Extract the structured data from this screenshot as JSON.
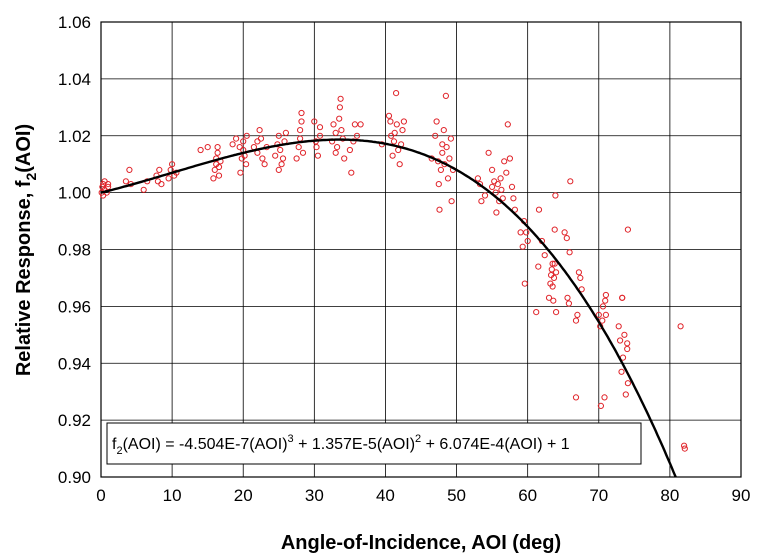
{
  "chart_data": {
    "type": "scatter",
    "xlabel": "Angle-of-Incidence, AOI (deg)",
    "ylabel": "Relative Response, f2(AOI)",
    "ylabel_parts": {
      "main": "Relative Response, f",
      "sub": "2",
      "tail": "(AOI)"
    },
    "xlim": [
      0,
      90
    ],
    "ylim": [
      0.9,
      1.06
    ],
    "x_ticks": [
      0,
      10,
      20,
      30,
      40,
      50,
      60,
      70,
      80,
      90
    ],
    "y_ticks": [
      0.9,
      0.92,
      0.94,
      0.96,
      0.98,
      1.0,
      1.02,
      1.04,
      1.06
    ],
    "y_tick_labels": [
      "0.90",
      "0.92",
      "0.94",
      "0.96",
      "0.98",
      "1.00",
      "1.02",
      "1.04",
      "1.06"
    ],
    "x_tick_labels": [
      "0",
      "10",
      "20",
      "30",
      "40",
      "50",
      "60",
      "70",
      "80",
      "90"
    ],
    "grid": true,
    "marker_color": "#e0242a",
    "curve_color": "#000000",
    "equation": "f2(AOI) = -4.504E-7(AOI)3 + 1.357E-5(AOI)2 + 6.074E-4(AOI) + 1",
    "equation_parts": {
      "a": "f",
      "a_sub": "2",
      "b": "(AOI) = -4.504E-7(AOI)",
      "b_sup": "3",
      "c": " + 1.357E-5(AOI)",
      "c_sup": "2",
      "d": " + 6.074E-4(AOI) + 1"
    },
    "fit_coefficients": {
      "a3": -4.504e-07,
      "a2": 1.357e-05,
      "a1": 0.0006074,
      "a0": 1
    },
    "points": [
      [
        0.1,
        1.0
      ],
      [
        0.2,
        1.002
      ],
      [
        0.3,
        1.003
      ],
      [
        0.3,
        0.999
      ],
      [
        0.5,
        1.001
      ],
      [
        0.5,
        1.004
      ],
      [
        0.8,
        1.0
      ],
      [
        1.0,
        1.002
      ],
      [
        1.0,
        1.003
      ],
      [
        3.5,
        1.004
      ],
      [
        4.0,
        1.008
      ],
      [
        4.2,
        1.003
      ],
      [
        6.0,
        1.001
      ],
      [
        6.5,
        1.004
      ],
      [
        7.8,
        1.006
      ],
      [
        8.0,
        1.004
      ],
      [
        8.2,
        1.008
      ],
      [
        8.5,
        1.003
      ],
      [
        9.5,
        1.005
      ],
      [
        9.8,
        1.008
      ],
      [
        10.0,
        1.01
      ],
      [
        10.3,
        1.006
      ],
      [
        10.6,
        1.007
      ],
      [
        14.0,
        1.015
      ],
      [
        15.0,
        1.016
      ],
      [
        15.8,
        1.005
      ],
      [
        16.0,
        1.008
      ],
      [
        16.2,
        1.01
      ],
      [
        16.2,
        1.012
      ],
      [
        16.4,
        1.014
      ],
      [
        16.4,
        1.016
      ],
      [
        16.6,
        1.009
      ],
      [
        16.6,
        1.006
      ],
      [
        16.8,
        1.011
      ],
      [
        18.5,
        1.017
      ],
      [
        19.0,
        1.019
      ],
      [
        19.5,
        1.016
      ],
      [
        19.6,
        1.007
      ],
      [
        19.8,
        1.012
      ],
      [
        20.0,
        1.015
      ],
      [
        20.0,
        1.018
      ],
      [
        20.2,
        1.013
      ],
      [
        20.4,
        1.01
      ],
      [
        20.5,
        1.02
      ],
      [
        21.5,
        1.016
      ],
      [
        22.0,
        1.018
      ],
      [
        22.0,
        1.014
      ],
      [
        22.3,
        1.022
      ],
      [
        22.5,
        1.019
      ],
      [
        22.7,
        1.012
      ],
      [
        23.0,
        1.01
      ],
      [
        23.3,
        1.016
      ],
      [
        24.5,
        1.013
      ],
      [
        24.8,
        1.017
      ],
      [
        25.0,
        1.02
      ],
      [
        25.0,
        1.008
      ],
      [
        25.2,
        1.015
      ],
      [
        25.4,
        1.01
      ],
      [
        25.6,
        1.012
      ],
      [
        25.8,
        1.018
      ],
      [
        26.0,
        1.021
      ],
      [
        27.5,
        1.012
      ],
      [
        27.8,
        1.016
      ],
      [
        28.0,
        1.019
      ],
      [
        28.0,
        1.022
      ],
      [
        28.2,
        1.025
      ],
      [
        28.2,
        1.028
      ],
      [
        28.4,
        1.014
      ],
      [
        30.0,
        1.025
      ],
      [
        30.2,
        1.018
      ],
      [
        30.3,
        1.016
      ],
      [
        30.5,
        1.013
      ],
      [
        30.8,
        1.02
      ],
      [
        30.8,
        1.023
      ],
      [
        32.5,
        1.018
      ],
      [
        32.7,
        1.024
      ],
      [
        33.0,
        1.021
      ],
      [
        33.0,
        1.014
      ],
      [
        33.2,
        1.016
      ],
      [
        33.5,
        1.026
      ],
      [
        33.6,
        1.03
      ],
      [
        33.7,
        1.033
      ],
      [
        33.8,
        1.022
      ],
      [
        34.0,
        1.019
      ],
      [
        34.2,
        1.012
      ],
      [
        35.0,
        1.015
      ],
      [
        35.2,
        1.007
      ],
      [
        35.5,
        1.018
      ],
      [
        35.7,
        1.024
      ],
      [
        36.0,
        1.02
      ],
      [
        36.5,
        1.024
      ],
      [
        39.5,
        1.017
      ],
      [
        40.5,
        1.027
      ],
      [
        40.7,
        1.025
      ],
      [
        40.8,
        1.02
      ],
      [
        41.0,
        1.013
      ],
      [
        41.2,
        1.018
      ],
      [
        41.3,
        1.021
      ],
      [
        41.5,
        1.035
      ],
      [
        41.6,
        1.024
      ],
      [
        41.8,
        1.015
      ],
      [
        42.0,
        1.01
      ],
      [
        42.2,
        1.017
      ],
      [
        42.4,
        1.022
      ],
      [
        42.6,
        1.025
      ],
      [
        46.5,
        1.012
      ],
      [
        47.0,
        1.02
      ],
      [
        47.2,
        1.025
      ],
      [
        47.4,
        1.011
      ],
      [
        47.5,
        1.003
      ],
      [
        47.6,
        0.994
      ],
      [
        47.8,
        1.008
      ],
      [
        48.0,
        1.017
      ],
      [
        48.0,
        1.014
      ],
      [
        48.2,
        1.022
      ],
      [
        48.3,
        1.01
      ],
      [
        48.5,
        1.034
      ],
      [
        48.6,
        1.016
      ],
      [
        48.8,
        1.005
      ],
      [
        49.0,
        1.012
      ],
      [
        49.2,
        1.019
      ],
      [
        49.3,
        0.997
      ],
      [
        49.5,
        1.008
      ],
      [
        53.0,
        1.005
      ],
      [
        53.3,
        1.003
      ],
      [
        53.5,
        0.997
      ],
      [
        54.0,
        0.999
      ],
      [
        54.5,
        1.014
      ],
      [
        55.0,
        1.008
      ],
      [
        55.0,
        1.002
      ],
      [
        55.3,
        1.004
      ],
      [
        55.5,
        1.0
      ],
      [
        55.6,
        0.993
      ],
      [
        55.8,
        1.003
      ],
      [
        56.0,
        0.997
      ],
      [
        56.2,
        1.005
      ],
      [
        56.3,
        1.001
      ],
      [
        56.5,
        0.998
      ],
      [
        56.7,
        1.011
      ],
      [
        57.0,
        1.007
      ],
      [
        57.2,
        1.024
      ],
      [
        57.5,
        1.012
      ],
      [
        57.8,
        1.002
      ],
      [
        58.0,
        0.998
      ],
      [
        58.2,
        0.994
      ],
      [
        59.0,
        0.986
      ],
      [
        59.3,
        0.981
      ],
      [
        59.5,
        0.99
      ],
      [
        59.6,
        0.968
      ],
      [
        59.8,
        0.986
      ],
      [
        60.0,
        0.983
      ],
      [
        61.2,
        0.958
      ],
      [
        61.5,
        0.974
      ],
      [
        61.6,
        0.994
      ],
      [
        62.0,
        0.983
      ],
      [
        62.4,
        0.978
      ],
      [
        63.0,
        0.963
      ],
      [
        63.2,
        0.968
      ],
      [
        63.3,
        0.971
      ],
      [
        63.4,
        0.973
      ],
      [
        63.5,
        0.975
      ],
      [
        63.5,
        0.967
      ],
      [
        63.6,
        0.962
      ],
      [
        63.7,
        0.97
      ],
      [
        63.8,
        0.975
      ],
      [
        63.8,
        0.987
      ],
      [
        63.9,
        0.999
      ],
      [
        64.0,
        0.958
      ],
      [
        64.0,
        0.972
      ],
      [
        65.2,
        0.986
      ],
      [
        65.5,
        0.984
      ],
      [
        65.6,
        0.963
      ],
      [
        65.8,
        0.961
      ],
      [
        65.9,
        0.979
      ],
      [
        66.0,
        1.004
      ],
      [
        66.8,
        0.928
      ],
      [
        66.8,
        0.955
      ],
      [
        67.0,
        0.957
      ],
      [
        67.2,
        0.972
      ],
      [
        67.4,
        0.97
      ],
      [
        67.6,
        0.966
      ],
      [
        70.0,
        0.957
      ],
      [
        70.2,
        0.953
      ],
      [
        70.3,
        0.925
      ],
      [
        70.5,
        0.955
      ],
      [
        70.6,
        0.96
      ],
      [
        70.8,
        0.928
      ],
      [
        70.9,
        0.962
      ],
      [
        71.0,
        0.964
      ],
      [
        71.0,
        0.957
      ],
      [
        72.8,
        0.953
      ],
      [
        73.0,
        0.948
      ],
      [
        73.2,
        0.937
      ],
      [
        73.3,
        0.963
      ],
      [
        73.3,
        0.963
      ],
      [
        73.4,
        0.942
      ],
      [
        73.6,
        0.95
      ],
      [
        73.8,
        0.929
      ],
      [
        74.0,
        0.945
      ],
      [
        74.0,
        0.947
      ],
      [
        74.1,
        0.933
      ],
      [
        74.1,
        0.987
      ],
      [
        81.5,
        0.953
      ],
      [
        82.0,
        0.911
      ],
      [
        82.1,
        0.91
      ]
    ]
  }
}
